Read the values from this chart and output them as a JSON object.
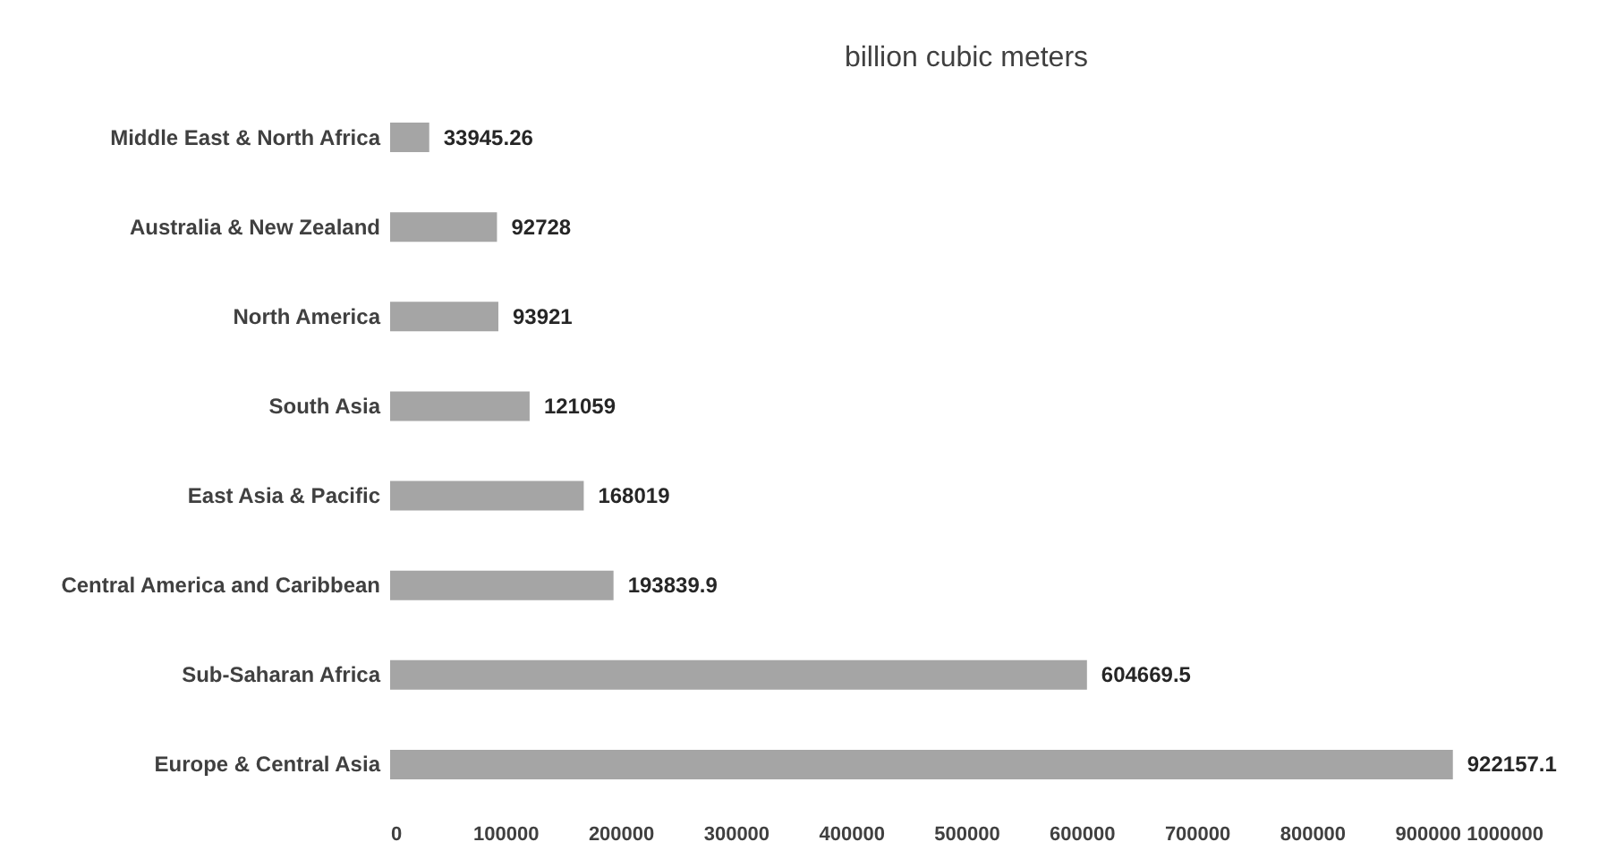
{
  "chart_data": {
    "type": "bar",
    "orientation": "horizontal",
    "title": "billion cubic meters",
    "categories": [
      "Middle East & North Africa",
      "Australia & New Zealand",
      "North America",
      "South Asia",
      "East Asia & Pacific",
      "Central America and Caribbean",
      "Sub-Saharan Africa",
      "Europe & Central Asia"
    ],
    "values": [
      33945.26,
      92728,
      93921,
      121059,
      168019,
      193839.9,
      604669.5,
      922157.1
    ],
    "color": "#a5a5a5",
    "xlim": [
      0,
      1000000
    ],
    "xticks": [
      0,
      100000,
      200000,
      300000,
      400000,
      500000,
      600000,
      700000,
      800000,
      900000,
      1000000
    ],
    "data_labels": true,
    "grid": false
  }
}
